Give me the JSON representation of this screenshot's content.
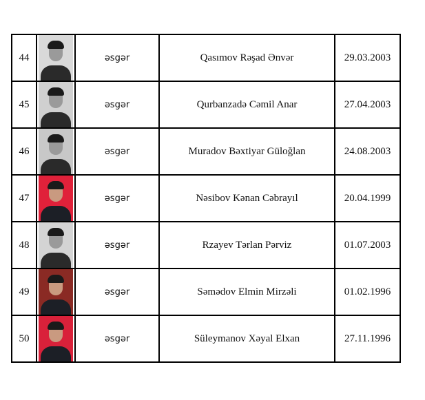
{
  "rows": [
    {
      "number": "44",
      "photo_bg": "#d9d9d9",
      "uniform": false,
      "rank": "əsgər",
      "name": "Qasımov Rəşad Ənvər",
      "birth_date": "29.03.2003"
    },
    {
      "number": "45",
      "photo_bg": "#d0d0d0",
      "uniform": false,
      "rank": "əsgər",
      "name": "Qurbanzadə Cəmil Anar",
      "birth_date": "27.04.2003"
    },
    {
      "number": "46",
      "photo_bg": "#c8c8c8",
      "uniform": false,
      "rank": "əsgər",
      "name": "Muradov Bəxtiyar Güloğlan",
      "birth_date": "24.08.2003"
    },
    {
      "number": "47",
      "photo_bg": "#e0213a",
      "uniform": true,
      "rank": "əsgər",
      "name": "Nəsibov Kənan Cəbrayıl",
      "birth_date": "20.04.1999"
    },
    {
      "number": "48",
      "photo_bg": "#d4d4d4",
      "uniform": false,
      "rank": "əsgər",
      "name": "Rzayev Tərlan Pərviz",
      "birth_date": "01.07.2003"
    },
    {
      "number": "49",
      "photo_bg": "#8a2a24",
      "uniform": true,
      "rank": "əsgər",
      "name": "Səmədov Elmin Mirzəli",
      "birth_date": "01.02.1996"
    },
    {
      "number": "50",
      "photo_bg": "#d9213a",
      "uniform": true,
      "rank": "əsgər",
      "name": "Süleymanov Xəyal Elxan",
      "birth_date": "27.11.1996"
    }
  ]
}
